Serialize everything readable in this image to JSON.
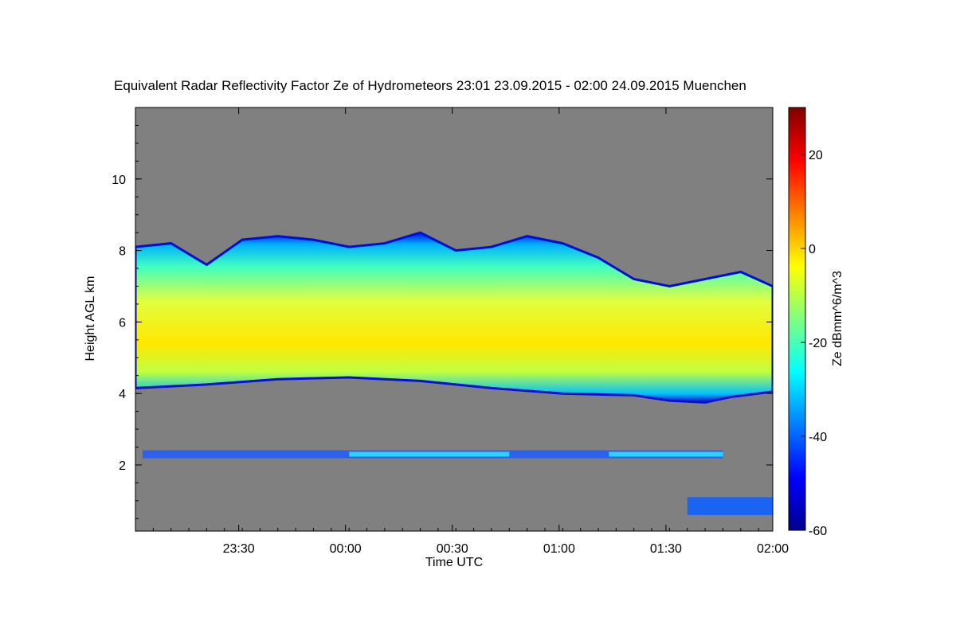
{
  "chart_data": {
    "type": "heatmap",
    "title": "Equivalent Radar Reflectivity Factor Ze of Hydrometeors   23:01 23.09.2015 - 02:00 24.09.2015 Muenchen",
    "xlabel": "Time UTC",
    "ylabel": "Height AGL km",
    "colorbar_label": "Ze dBmm^6/m^3",
    "x_range": [
      "23:01",
      "02:00"
    ],
    "x_ticks": [
      "23:30",
      "00:00",
      "00:30",
      "01:00",
      "01:30",
      "02:00"
    ],
    "x_tick_minutes": [
      29,
      59,
      89,
      119,
      149,
      179
    ],
    "x_total_minutes": 179,
    "ylim": [
      0.15,
      12.0
    ],
    "y_ticks": [
      2,
      4,
      6,
      8,
      10
    ],
    "clim": [
      -60,
      30
    ],
    "colorbar_ticks": [
      -60,
      -40,
      -20,
      0,
      20
    ],
    "background_color": "#808080",
    "colormap": [
      "#00008f",
      "#0000ff",
      "#0080ff",
      "#00ffff",
      "#80ff80",
      "#ffff00",
      "#ff8000",
      "#ff0000",
      "#800000"
    ],
    "cloud_layer": {
      "description_values_dBZ": [
        -35,
        -5
      ],
      "base_km": [
        [
          0,
          4.15
        ],
        [
          20,
          4.25
        ],
        [
          40,
          4.4
        ],
        [
          60,
          4.45
        ],
        [
          80,
          4.35
        ],
        [
          100,
          4.15
        ],
        [
          120,
          4.0
        ],
        [
          140,
          3.95
        ],
        [
          150,
          3.8
        ],
        [
          160,
          3.75
        ],
        [
          167,
          3.9
        ],
        [
          179,
          4.05
        ]
      ],
      "top_km": [
        [
          0,
          8.1
        ],
        [
          10,
          8.2
        ],
        [
          20,
          7.6
        ],
        [
          30,
          8.3
        ],
        [
          40,
          8.4
        ],
        [
          50,
          8.3
        ],
        [
          60,
          8.1
        ],
        [
          70,
          8.2
        ],
        [
          80,
          8.5
        ],
        [
          90,
          8.0
        ],
        [
          100,
          8.1
        ],
        [
          110,
          8.4
        ],
        [
          120,
          8.2
        ],
        [
          130,
          7.8
        ],
        [
          140,
          7.2
        ],
        [
          150,
          7.0
        ],
        [
          160,
          7.2
        ],
        [
          170,
          7.4
        ],
        [
          179,
          7.0
        ]
      ]
    },
    "low_layer_km": 2.3,
    "near_surface_echo": {
      "start_min": 155,
      "end_min": 179,
      "height_km": [
        0.6,
        1.1
      ]
    }
  }
}
